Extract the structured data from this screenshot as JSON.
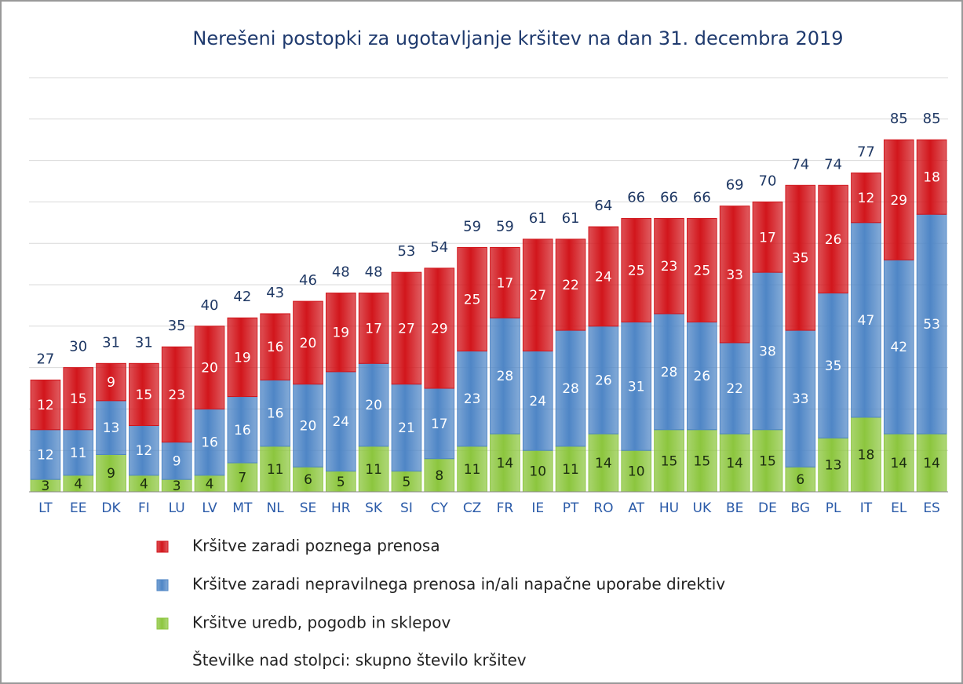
{
  "chart_data": {
    "type": "stacked_bar",
    "title": "Nerešeni postopki za ugotavljanje kršitev na dan 31. decembra 2019",
    "note": "Številke nad stolpci: skupno število kršitev",
    "categories": [
      "LT",
      "EE",
      "DK",
      "FI",
      "LU",
      "LV",
      "MT",
      "NL",
      "SE",
      "HR",
      "SK",
      "SI",
      "CY",
      "CZ",
      "FR",
      "IE",
      "PT",
      "RO",
      "AT",
      "HU",
      "UK",
      "BE",
      "DE",
      "BG",
      "PL",
      "IT",
      "EL",
      "ES"
    ],
    "series": [
      {
        "name": "Kršitve uredb, pogodb in sklepov",
        "color": "#8cc63e",
        "values": [
          3,
          4,
          9,
          4,
          3,
          4,
          7,
          11,
          6,
          5,
          11,
          5,
          8,
          11,
          14,
          10,
          11,
          14,
          10,
          15,
          15,
          14,
          15,
          6,
          13,
          18,
          14,
          14
        ]
      },
      {
        "name": "Kršitve zaradi nepravilnega prenosa in/ali napačne uporabe direktiv",
        "color": "#4f86c6",
        "values": [
          12,
          11,
          13,
          12,
          9,
          16,
          16,
          16,
          20,
          24,
          20,
          21,
          17,
          23,
          28,
          24,
          28,
          26,
          31,
          28,
          26,
          22,
          38,
          33,
          35,
          47,
          42,
          53
        ]
      },
      {
        "name": "Kršitve zaradi poznega prenosa",
        "color": "#d2161c",
        "values": [
          12,
          15,
          9,
          15,
          23,
          20,
          19,
          16,
          20,
          19,
          17,
          27,
          29,
          25,
          17,
          27,
          22,
          24,
          25,
          23,
          25,
          33,
          17,
          35,
          26,
          12,
          29,
          18
        ]
      }
    ],
    "totals": [
      27,
      30,
      31,
      31,
      35,
      40,
      42,
      43,
      46,
      48,
      48,
      53,
      54,
      59,
      59,
      61,
      61,
      64,
      66,
      66,
      66,
      69,
      70,
      74,
      74,
      77,
      85,
      85
    ],
    "ylim": [
      0,
      100
    ],
    "yticks": [
      0,
      10,
      20,
      30,
      40,
      50,
      60,
      70,
      80,
      90,
      100
    ],
    "grid": true
  }
}
